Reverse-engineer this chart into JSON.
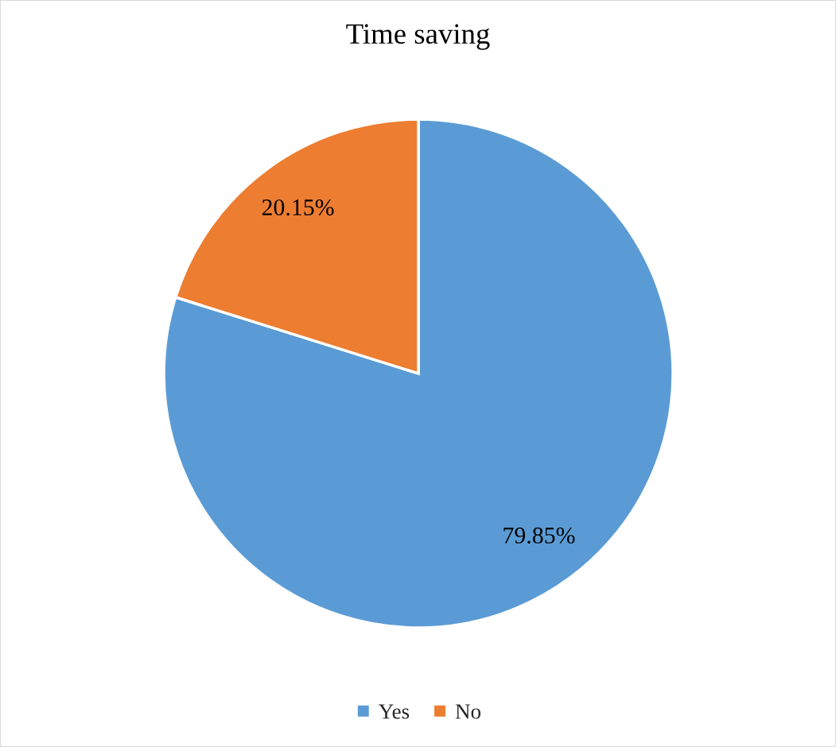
{
  "chart_data": {
    "type": "pie",
    "title": "Time saving",
    "categories": [
      "Yes",
      "No"
    ],
    "values": [
      79.85,
      20.15
    ],
    "colors": [
      "#5b9bd5",
      "#ed7d31"
    ],
    "value_labels": [
      "79.85%",
      "20.15%"
    ],
    "legend": "bottom"
  }
}
